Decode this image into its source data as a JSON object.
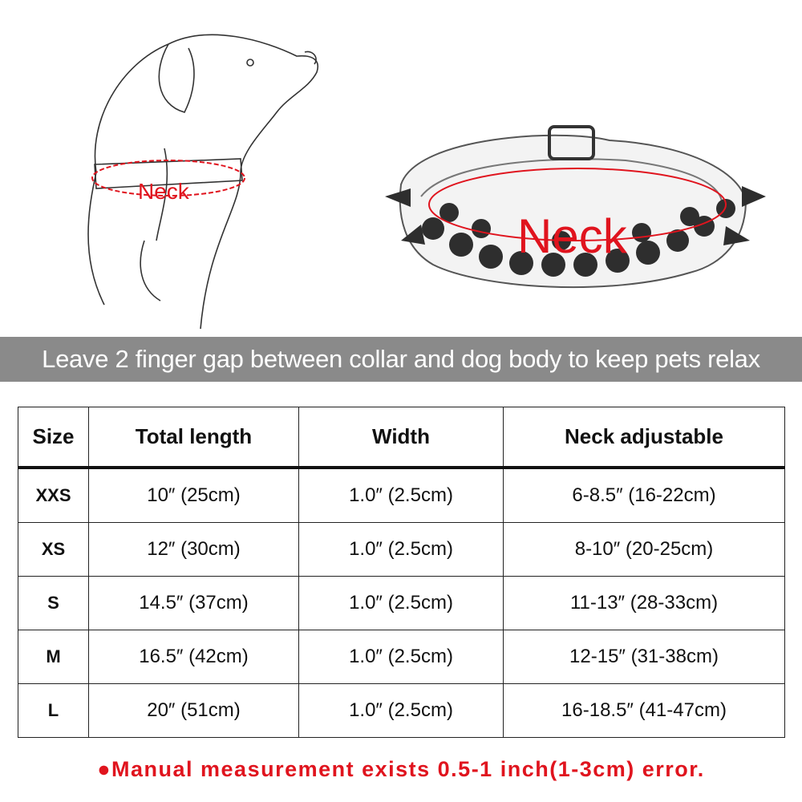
{
  "illustrations": {
    "dog_label": "Neck",
    "collar_label": "Neck",
    "accent_color": "#e0141e"
  },
  "banner": {
    "text": "Leave 2 finger gap between collar and dog body to keep pets relax"
  },
  "table": {
    "headers": [
      "Size",
      "Total length",
      "Width",
      "Neck adjustable"
    ],
    "rows": [
      [
        "XXS",
        "10″ (25cm)",
        "1.0″ (2.5cm)",
        "6-8.5″ (16-22cm)"
      ],
      [
        "XS",
        "12″ (30cm)",
        "1.0″ (2.5cm)",
        "8-10″ (20-25cm)"
      ],
      [
        "S",
        "14.5″ (37cm)",
        "1.0″ (2.5cm)",
        "11-13″ (28-33cm)"
      ],
      [
        "M",
        "16.5″ (42cm)",
        "1.0″ (2.5cm)",
        "12-15″ (31-38cm)"
      ],
      [
        "L",
        "20″ (51cm)",
        "1.0″ (2.5cm)",
        "16-18.5″ (41-47cm)"
      ]
    ]
  },
  "note": {
    "text": "●Manual measurement exists 0.5-1 inch(1-3cm) error."
  }
}
